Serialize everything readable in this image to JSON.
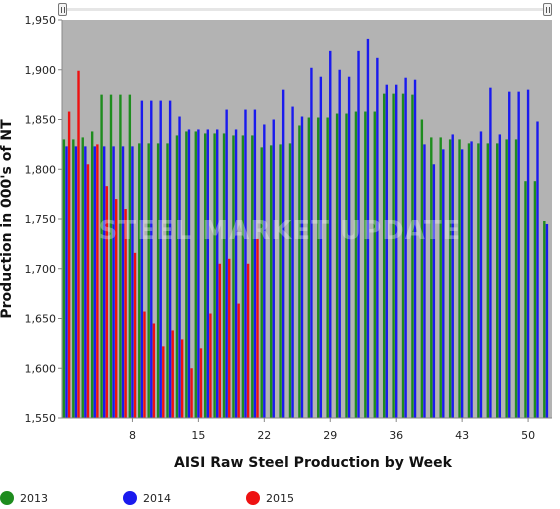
{
  "chart_data": {
    "type": "bar",
    "title": "",
    "xlabel": "AISI Raw Steel Production by Week",
    "ylabel": "Production in 000's of NT",
    "ylim": [
      1550,
      1950
    ],
    "yticks": [
      1550,
      1600,
      1650,
      1700,
      1750,
      1800,
      1850,
      1900,
      1950
    ],
    "ytick_labels": [
      "1,550",
      "1,600",
      "1,650",
      "1,700",
      "1,750",
      "1,800",
      "1,850",
      "1,900",
      "1,950"
    ],
    "xlim": [
      1,
      52
    ],
    "xticks": [
      8,
      15,
      22,
      29,
      36,
      43,
      50
    ],
    "grid": false,
    "legend_position": "bottom",
    "watermark": "STEEL MARKET UPDATE",
    "series": [
      {
        "name": "2013",
        "color": "#1e8c1e",
        "x": [
          1,
          2,
          3,
          4,
          5,
          6,
          7,
          8,
          9,
          10,
          11,
          12,
          13,
          14,
          15,
          16,
          17,
          18,
          19,
          20,
          21,
          22,
          23,
          24,
          25,
          26,
          27,
          28,
          29,
          30,
          31,
          32,
          33,
          34,
          35,
          36,
          37,
          38,
          39,
          40,
          41,
          42,
          43,
          44,
          45,
          46,
          47,
          48,
          49,
          50,
          51,
          52
        ],
        "values": [
          1830,
          1830,
          1832,
          1838,
          1875,
          1875,
          1875,
          1875,
          1826,
          1826,
          1826,
          1826,
          1834,
          1838,
          1838,
          1836,
          1836,
          1836,
          1834,
          1834,
          1834,
          1822,
          1824,
          1825,
          1826,
          1844,
          1852,
          1852,
          1852,
          1856,
          1856,
          1858,
          1858,
          1858,
          1876,
          1876,
          1876,
          1875,
          1850,
          1832,
          1832,
          1830,
          1830,
          1826,
          1826,
          1826,
          1826,
          1830,
          1830,
          1788,
          1788,
          1748
        ]
      },
      {
        "name": "2014",
        "color": "#1a1aee",
        "x": [
          1,
          2,
          3,
          4,
          5,
          6,
          7,
          8,
          9,
          10,
          11,
          12,
          13,
          14,
          15,
          16,
          17,
          18,
          19,
          20,
          21,
          22,
          23,
          24,
          25,
          26,
          27,
          28,
          29,
          30,
          31,
          32,
          33,
          34,
          35,
          36,
          37,
          38,
          39,
          40,
          41,
          42,
          43,
          44,
          45,
          46,
          47,
          48,
          49,
          50,
          51,
          52
        ],
        "values": [
          1823,
          1823,
          1823,
          1823,
          1823,
          1823,
          1823,
          1823,
          1869,
          1869,
          1869,
          1869,
          1853,
          1840,
          1840,
          1840,
          1840,
          1860,
          1840,
          1860,
          1860,
          1845,
          1850,
          1880,
          1863,
          1853,
          1902,
          1893,
          1919,
          1900,
          1893,
          1919,
          1931,
          1912,
          1885,
          1885,
          1892,
          1890,
          1825,
          1805,
          1820,
          1835,
          1820,
          1828,
          1838,
          1882,
          1835,
          1878,
          1878,
          1880,
          1848,
          1745
        ]
      },
      {
        "name": "2015",
        "color": "#ee1111",
        "x": [
          1,
          2,
          3,
          4,
          5,
          6,
          7,
          8,
          9,
          10,
          11,
          12,
          13,
          14,
          15,
          16,
          17,
          18,
          19,
          20,
          21
        ],
        "values": [
          1858,
          1899,
          1805,
          1825,
          1783,
          1770,
          1760,
          1716,
          1657,
          1645,
          1622,
          1638,
          1629,
          1600,
          1620,
          1655,
          1705,
          1710,
          1665,
          1705,
          1730
        ]
      }
    ]
  }
}
